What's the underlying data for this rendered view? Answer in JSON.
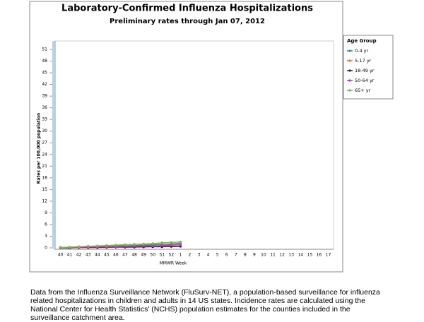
{
  "chart_data": {
    "type": "line",
    "title": "Laboratory-Confirmed Influenza Hospitalizations",
    "subtitle": "Preliminary rates through Jan 07, 2012",
    "y_label": "Rates per 100,000 population",
    "x_label": "MMWR Week",
    "legend_title": "Age Group",
    "categories": [
      "40",
      "41",
      "42",
      "43",
      "44",
      "45",
      "46",
      "47",
      "48",
      "49",
      "50",
      "51",
      "52",
      "1",
      "2",
      "3",
      "4",
      "5",
      "6",
      "7",
      "8",
      "9",
      "10",
      "11",
      "12",
      "13",
      "14",
      "15",
      "16",
      "17"
    ],
    "series": [
      {
        "name": "0-4 yr",
        "color": "#2e8b8b",
        "values": [
          0.1,
          0.1,
          0.2,
          0.3,
          0.3,
          0.4,
          0.5,
          0.5,
          0.6,
          0.7,
          0.8,
          0.9,
          1.0,
          1.2,
          null,
          null,
          null,
          null,
          null,
          null,
          null,
          null,
          null,
          null,
          null,
          null,
          null,
          null,
          null,
          null
        ]
      },
      {
        "name": "5-17 yr",
        "color": "#e07b20",
        "values": [
          0.0,
          0.0,
          0.1,
          0.1,
          0.1,
          0.1,
          0.2,
          0.2,
          0.2,
          0.2,
          0.3,
          0.3,
          0.3,
          0.4,
          null,
          null,
          null,
          null,
          null,
          null,
          null,
          null,
          null,
          null,
          null,
          null,
          null,
          null,
          null,
          null
        ]
      },
      {
        "name": "18-49 yr",
        "color": "#1f2a5a",
        "values": [
          0.0,
          0.0,
          0.1,
          0.1,
          0.1,
          0.2,
          0.2,
          0.2,
          0.2,
          0.3,
          0.3,
          0.3,
          0.4,
          0.4,
          null,
          null,
          null,
          null,
          null,
          null,
          null,
          null,
          null,
          null,
          null,
          null,
          null,
          null,
          null,
          null
        ]
      },
      {
        "name": "50-64 yr",
        "color": "#cc33aa",
        "values": [
          0.1,
          0.1,
          0.1,
          0.2,
          0.2,
          0.3,
          0.3,
          0.4,
          0.4,
          0.5,
          0.5,
          0.6,
          0.7,
          0.8,
          null,
          null,
          null,
          null,
          null,
          null,
          null,
          null,
          null,
          null,
          null,
          null,
          null,
          null,
          null,
          null
        ]
      },
      {
        "name": "65+ yr",
        "color": "#7ab648",
        "values": [
          0.1,
          0.2,
          0.3,
          0.4,
          0.5,
          0.6,
          0.7,
          0.8,
          0.9,
          1.0,
          1.1,
          1.3,
          1.4,
          1.5,
          null,
          null,
          null,
          null,
          null,
          null,
          null,
          null,
          null,
          null,
          null,
          null,
          null,
          null,
          null,
          null
        ]
      }
    ],
    "ylim": [
      0,
      53
    ],
    "yticks": [
      0,
      3,
      6,
      9,
      12,
      15,
      18,
      21,
      24,
      27,
      30,
      33,
      36,
      39,
      42,
      45,
      48,
      51
    ],
    "grid": false,
    "legend": "right"
  },
  "caption": "Data from the Influenza Surveillance Network (FluSurv-NET), a population-based surveillance for influenza related hospitalizations in children and adults in 14 US states. Incidence rates are calculated using the National Center for Health Statistics' (NCHS) population estimates for the counties included in the surveillance catchment area."
}
